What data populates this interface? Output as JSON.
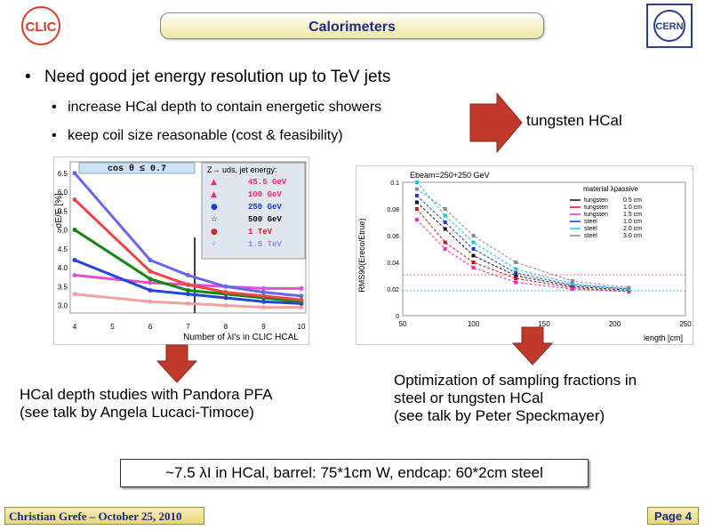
{
  "header": {
    "title": "Calorimeters",
    "logo_left_text": "CLIC",
    "logo_right_text": "CERN"
  },
  "bullets": {
    "main": "Need good jet energy resolution up to TeV jets",
    "sub": [
      "increase HCal depth to contain energetic showers",
      "keep coil size reasonable (cost & feasibility)"
    ]
  },
  "arrow_label": "tungsten HCal",
  "left_plot": {
    "banner": "cos θ ≤ 0.7",
    "legend_title": "Z→ uds, jet energy:",
    "ylabel": "σE/E [%]",
    "xlabel": "Number of λI's in CLIC HCAL",
    "x_ticks": [
      "4",
      "5",
      "6",
      "7",
      "8",
      "9",
      "10"
    ],
    "y_ticks": [
      "3.0",
      "3.5",
      "4.0",
      "4.5",
      "5.0",
      "5.5",
      "6.0",
      "6.5"
    ],
    "legend": [
      {
        "label": "45.5 GeV",
        "color": "#e0306a",
        "symbol": "▲"
      },
      {
        "label": "100 GeV",
        "color": "#e0306a",
        "symbol": "▲"
      },
      {
        "label": "250 GeV",
        "color": "#1a3bd6",
        "symbol": "●"
      },
      {
        "label": "500 GeV",
        "color": "#111111",
        "symbol": "☆"
      },
      {
        "label": "1 TeV",
        "color": "#e02020",
        "symbol": "●"
      },
      {
        "label": "1.5 TeV",
        "color": "#8a8af0",
        "symbol": "✧"
      }
    ]
  },
  "chart_data": [
    {
      "type": "line",
      "title": "",
      "xlabel": "Number of λI's in CLIC HCAL",
      "ylabel": "σE/E [%]",
      "xlim": [
        4,
        10
      ],
      "ylim": [
        2.8,
        6.8
      ],
      "x": [
        4,
        6,
        7,
        8,
        9,
        10
      ],
      "series": [
        {
          "name": "45.5 GeV",
          "color": "#f4a0a0",
          "values": [
            3.3,
            3.1,
            3.05,
            3.0,
            2.95,
            2.95
          ]
        },
        {
          "name": "100 GeV",
          "color": "#e050d0",
          "values": [
            3.8,
            3.6,
            3.55,
            3.5,
            3.45,
            3.45
          ]
        },
        {
          "name": "250 GeV",
          "color": "#2244dd",
          "values": [
            4.2,
            3.4,
            3.3,
            3.2,
            3.1,
            3.05
          ]
        },
        {
          "name": "500 GeV",
          "color": "#118811",
          "values": [
            5.0,
            3.7,
            3.4,
            3.3,
            3.2,
            3.1
          ]
        },
        {
          "name": "1 TeV",
          "color": "#ee4444",
          "values": [
            5.8,
            3.9,
            3.55,
            3.35,
            3.25,
            3.15
          ]
        },
        {
          "name": "1.5 TeV",
          "color": "#6666ee",
          "values": [
            6.5,
            4.2,
            3.8,
            3.5,
            3.35,
            3.25
          ]
        }
      ]
    },
    {
      "type": "line",
      "title": "Ebeam=250+250 GeV",
      "xlabel": "length [cm]",
      "ylabel": "RMS90(Ereco/Etrue)",
      "xlim": [
        50,
        250
      ],
      "ylim": [
        0.0,
        0.1
      ],
      "x_ticks": [
        "50",
        "100",
        "150",
        "200",
        "250"
      ],
      "y_ticks": [
        "0",
        "0.02",
        "0.04",
        "0.06",
        "0.08",
        "0.1"
      ],
      "legend_title": "material  λpassive",
      "x": [
        60,
        80,
        100,
        130,
        170,
        210
      ],
      "series": [
        {
          "name": "tungsten 0.5 cm",
          "color": "#111111",
          "values": [
            0.085,
            0.065,
            0.045,
            0.03,
            0.022,
            0.019
          ]
        },
        {
          "name": "tungsten 1.0 cm",
          "color": "#d01010",
          "values": [
            0.08,
            0.055,
            0.04,
            0.028,
            0.021,
            0.018
          ]
        },
        {
          "name": "tungsten 1.5 cm",
          "color": "#e030c0",
          "values": [
            0.072,
            0.05,
            0.036,
            0.025,
            0.02,
            0.018
          ]
        },
        {
          "name": "steel 1.0 cm",
          "color": "#1a3bd6",
          "values": [
            0.09,
            0.07,
            0.05,
            0.032,
            0.023,
            0.02
          ]
        },
        {
          "name": "steel 2.0 cm",
          "color": "#20c0e0",
          "values": [
            0.1,
            0.075,
            0.055,
            0.035,
            0.024,
            0.02
          ]
        },
        {
          "name": "steel 3.0 cm",
          "color": "#888888",
          "values": [
            0.095,
            0.08,
            0.06,
            0.04,
            0.026,
            0.021
          ]
        }
      ]
    }
  ],
  "right_plot": {
    "title": "Ebeam=250+250 GeV",
    "xlabel": "length [cm]",
    "ylabel": "RMS90(Ereco/Etrue)",
    "legend_title": "material  λpassive",
    "legend": [
      {
        "material": "tungsten",
        "thickness": "0.5 cm",
        "color": "#111111"
      },
      {
        "material": "tungsten",
        "thickness": "1.0 cm",
        "color": "#d01010"
      },
      {
        "material": "tungsten",
        "thickness": "1.5 cm",
        "color": "#e030c0"
      },
      {
        "material": "steel",
        "thickness": "1.0 cm",
        "color": "#1a3bd6"
      },
      {
        "material": "steel",
        "thickness": "2.0 cm",
        "color": "#20c0e0"
      },
      {
        "material": "steel",
        "thickness": "3.0 cm",
        "color": "#888888"
      }
    ],
    "x_ticks": [
      "50",
      "100",
      "150",
      "200",
      "250"
    ],
    "y_ticks": [
      "0",
      "0.02",
      "0.04",
      "0.06",
      "0.08",
      "0.1"
    ]
  },
  "captions": {
    "left": [
      "HCal depth studies with Pandora PFA",
      "(see talk by Angela Lucaci-Timoce)"
    ],
    "right": [
      "Optimization of sampling fractions in",
      "steel or tungsten HCal",
      "(see talk by Peter Speckmayer)"
    ]
  },
  "summary": "~7.5 λI in HCal, barrel: 75*1cm W, endcap: 60*2cm steel",
  "footer": {
    "author": "Christian Grefe – October 25, 2010",
    "page": "Page 4"
  },
  "colors": {
    "arrow": "#c0392b",
    "title_text": "#1f2a8a",
    "footer_bg": "#ecdd8a"
  }
}
